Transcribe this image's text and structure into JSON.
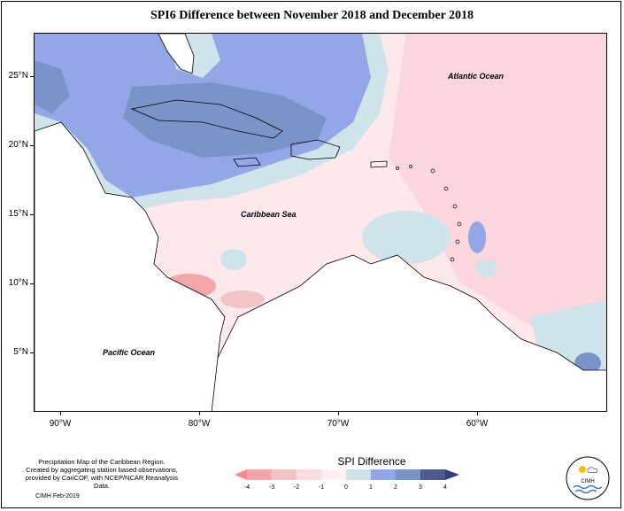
{
  "title": "SPI6 Difference between November 2018 and December 2018",
  "map": {
    "lat_labels": [
      "25°N",
      "20°N",
      "15°N",
      "10°N",
      "5°N"
    ],
    "lon_labels": [
      "90°W",
      "80°W",
      "70°W",
      "60°W"
    ],
    "ocean_labels": {
      "atlantic": "Atlantic Ocean",
      "caribbean": "Caribbean Sea",
      "pacific": "Pacific Ocean"
    }
  },
  "legend": {
    "title": "SPI Difference",
    "ticks": [
      "-4",
      "-3",
      "-2",
      "-1",
      "0",
      "1",
      "2",
      "3",
      "4"
    ],
    "colors": [
      "#f48a8a",
      "#f3a7ab",
      "#f2c4c7",
      "#fbdde2",
      "#fdf0f2",
      "#cfe3ea",
      "#93a6e6",
      "#7a93c9",
      "#4e5b8c",
      "#2f3f80"
    ]
  },
  "credit": {
    "line1": "Precipitation Map of the Caribbean Region.",
    "line2": "Created by aggregating station based observations,",
    "line3": "provided by CariCOF, with NCEP/NCAR Reanalysis Data."
  },
  "date_stamp": "CIMH Feb-2019",
  "logo": {
    "text": "CIMH",
    "icon": "cimh-logo-icon"
  }
}
